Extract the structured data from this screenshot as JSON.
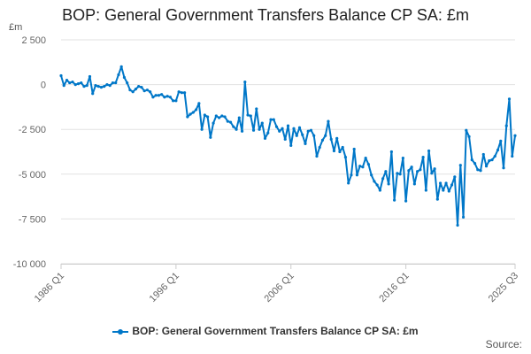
{
  "chart_data": {
    "type": "line",
    "title": "BOP: General Government Transfers Balance CP SA: £m",
    "ylabel": "£m",
    "xlabel": "",
    "x_start": "1986 Q1",
    "x_end": "2025 Q3",
    "frequency": "quarterly",
    "x_tick_labels": [
      "1986 Q1",
      "1996 Q1",
      "2006 Q1",
      "2016 Q1",
      "2025 Q3"
    ],
    "y_tick_labels": [
      "2 500",
      "0",
      "-2 500",
      "-5 000",
      "-7 500",
      "-10 000"
    ],
    "y_ticks": [
      2500,
      0,
      -2500,
      -5000,
      -7500,
      -10000
    ],
    "ylim": [
      -10000,
      2500
    ],
    "grid": "horizontal",
    "legend": "bottom",
    "color": "#0077c8",
    "series": [
      {
        "name": "BOP: General Government Transfers Balance CP SA: £m",
        "values": [
          500,
          -50,
          250,
          100,
          150,
          0,
          50,
          100,
          -100,
          -50,
          450,
          -500,
          -50,
          -100,
          -150,
          -100,
          0,
          -50,
          100,
          100,
          550,
          1000,
          400,
          100,
          -300,
          -400,
          -250,
          -100,
          -150,
          -350,
          -300,
          -400,
          -700,
          -600,
          -600,
          -550,
          -700,
          -650,
          -700,
          -900,
          -900,
          -400,
          -450,
          -450,
          -1800,
          -1650,
          -1550,
          -1400,
          -1050,
          -2500,
          -1700,
          -1800,
          -2950,
          -2150,
          -1750,
          -1850,
          -1750,
          -1800,
          -2050,
          -2100,
          -2350,
          -2500,
          -1850,
          -2600,
          150,
          -1700,
          -1750,
          -2550,
          -1350,
          -2500,
          -2150,
          -3000,
          -2700,
          -1950,
          -1950,
          -2350,
          -2600,
          -2450,
          -3050,
          -2300,
          -3400,
          -2450,
          -2850,
          -2400,
          -2800,
          -3300,
          -2600,
          -2550,
          -2850,
          -4000,
          -3500,
          -3100,
          -2850,
          -2050,
          -3050,
          -3700,
          -3000,
          -3750,
          -3500,
          -4050,
          -5500,
          -5050,
          -3600,
          -5050,
          -4550,
          -4600,
          -4100,
          -4450,
          -5050,
          -5400,
          -5600,
          -5900,
          -5250,
          -4850,
          -5550,
          -3750,
          -6450,
          -4950,
          -5000,
          -4100,
          -6500,
          -4800,
          -4600,
          -5550,
          -4850,
          -4750,
          -4050,
          -5900,
          -3700,
          -4950,
          -4700,
          -6400,
          -5500,
          -5900,
          -5500,
          -5950,
          -5600,
          -5150,
          -7850,
          -4500,
          -7400,
          -2550,
          -2900,
          -4200,
          -4400,
          -4750,
          -4800,
          -3900,
          -4550,
          -4250,
          -4200,
          -4000,
          -3650,
          -3150,
          -4650,
          -2300,
          -800,
          -4000,
          -2850
        ]
      }
    ],
    "source_label": "Source:"
  }
}
